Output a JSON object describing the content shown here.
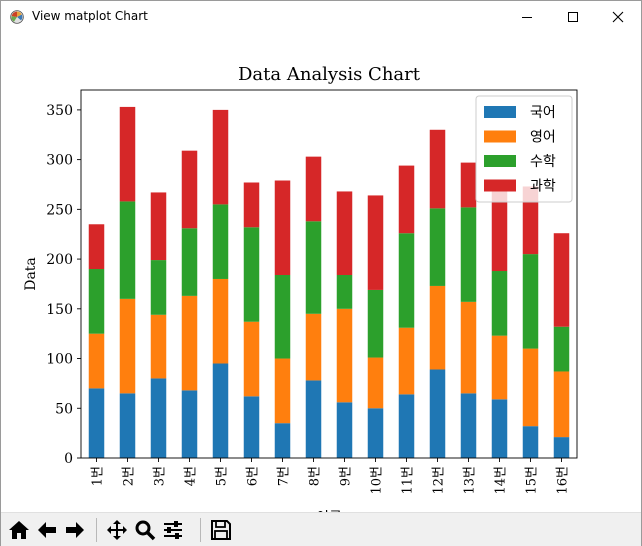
{
  "window": {
    "title": "View matplot Chart"
  },
  "toolbar": {
    "buttons": [
      "home-icon",
      "back-icon",
      "forward-icon",
      "pan-icon",
      "zoom-icon",
      "configure-icon",
      "save-icon"
    ]
  },
  "colors": {
    "blue": "#1f77b4",
    "orange": "#ff7f0e",
    "green": "#2ca02c",
    "red": "#d62728"
  },
  "chart_data": {
    "type": "bar",
    "stacked": true,
    "title": "Data Analysis Chart",
    "xlabel": "이름",
    "ylabel": "Data",
    "ylim": [
      0,
      370
    ],
    "yticks": [
      0,
      50,
      100,
      150,
      200,
      250,
      300,
      350
    ],
    "categories": [
      "1번",
      "2번",
      "3번",
      "4번",
      "5번",
      "6번",
      "7번",
      "8번",
      "9번",
      "10번",
      "11번",
      "12번",
      "13번",
      "14번",
      "15번",
      "16번"
    ],
    "series": [
      {
        "name": "국어",
        "color": "#1f77b4",
        "values": [
          70,
          65,
          80,
          68,
          95,
          62,
          35,
          78,
          56,
          50,
          64,
          89,
          65,
          59,
          32,
          21
        ]
      },
      {
        "name": "영어",
        "color": "#ff7f0e",
        "values": [
          55,
          95,
          64,
          95,
          85,
          75,
          65,
          67,
          94,
          51,
          67,
          84,
          92,
          64,
          78,
          66
        ]
      },
      {
        "name": "수학",
        "color": "#2ca02c",
        "values": [
          65,
          98,
          55,
          68,
          75,
          95,
          84,
          93,
          34,
          68,
          95,
          78,
          95,
          65,
          95,
          45
        ]
      },
      {
        "name": "과학",
        "color": "#d62728",
        "values": [
          45,
          95,
          68,
          78,
          95,
          45,
          95,
          65,
          84,
          95,
          68,
          79,
          45,
          85,
          68,
          94
        ]
      }
    ],
    "legend_position": "upper right"
  }
}
